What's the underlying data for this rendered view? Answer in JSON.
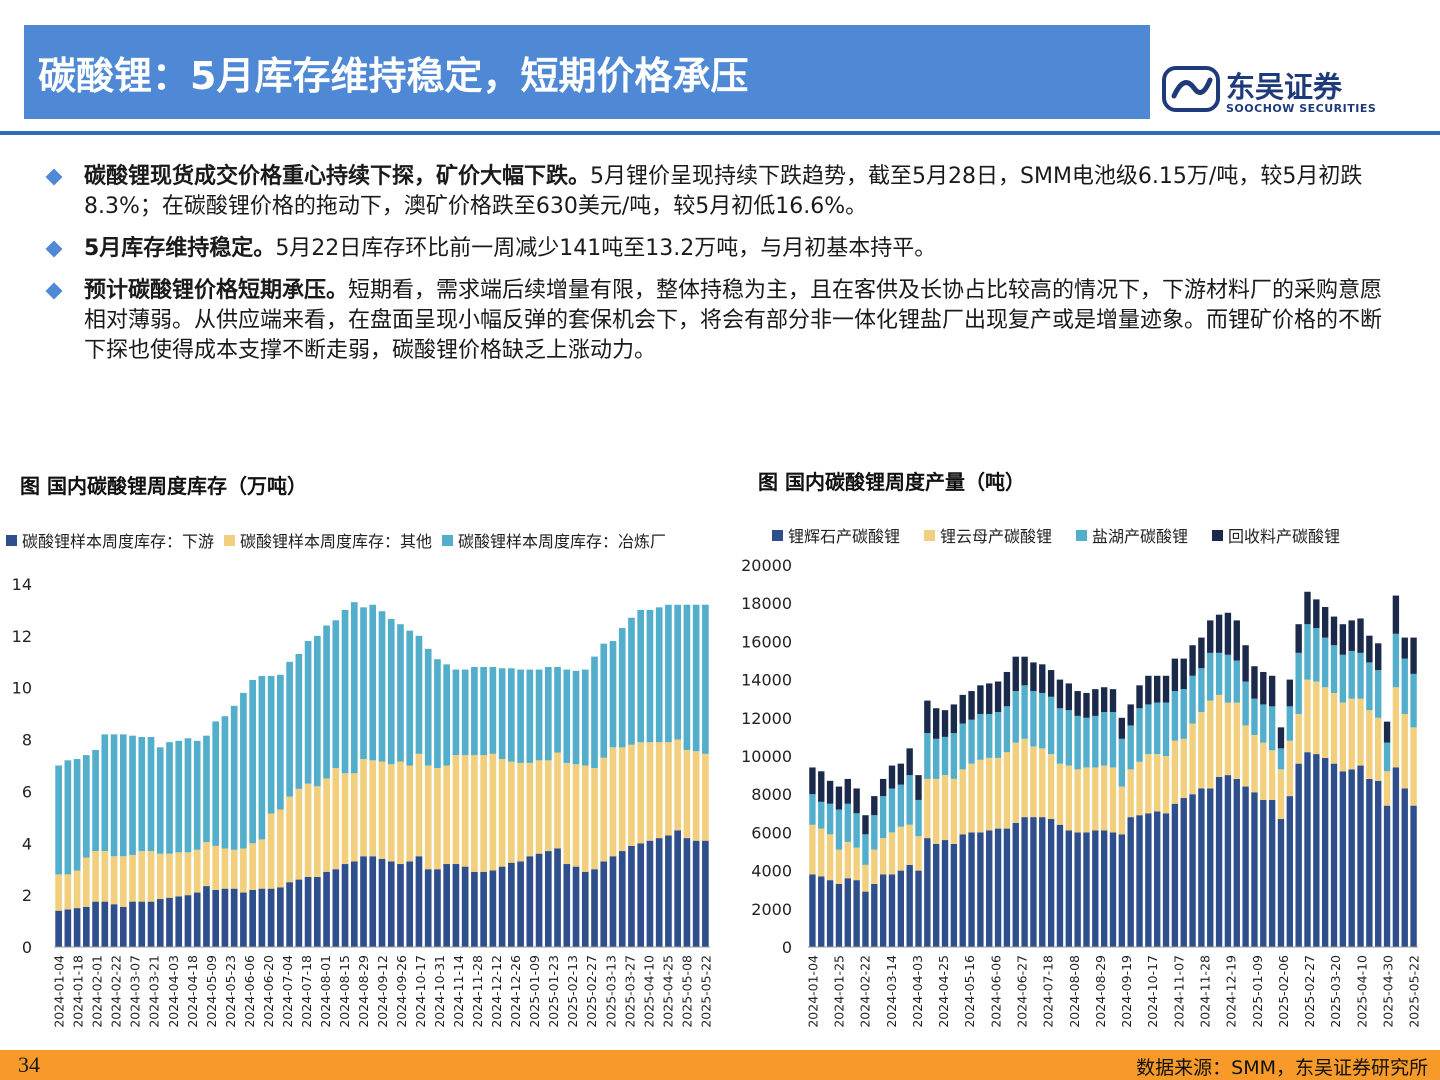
{
  "header": {
    "title": "碳酸锂：5月库存维持稳定，短期价格承压",
    "logo_cn": "东吴证券",
    "logo_en": "SOOCHOW SECURITIES"
  },
  "bullets": [
    {
      "bold": "碳酸锂现货成交价格重心持续下探，矿价大幅下跌。",
      "text": "5月锂价呈现持续下跌趋势，截至5月28日，SMM电池级6.15万/吨，较5月初跌8.3%；在碳酸锂价格的拖动下，澳矿价格跌至630美元/吨，较5月初低16.6%。"
    },
    {
      "bold": "5月库存维持稳定。",
      "text": "5月22日库存环比前一周减少141吨至13.2万吨，与月初基本持平。"
    },
    {
      "bold": "预计碳酸锂价格短期承压。",
      "text": "短期看，需求端后续增量有限，整体持稳为主，且在客供及长协占比较高的情况下，下游材料厂的采购意愿相对薄弱。从供应端来看，在盘面呈现小幅反弹的套保机会下，将会有部分非一体化锂盐厂出现复产或是增量迹象。而锂矿价格的不断下探也使得成本支撑不断走弱，碳酸锂价格缺乏上涨动力。"
    }
  ],
  "footer": {
    "page": "34",
    "source": "数据来源：SMM，东吴证券研究所"
  },
  "colors": {
    "accent": "#4f88d4",
    "dark_blue": "#2e4f8c",
    "yellow": "#f2cf7d",
    "teal": "#52aecb",
    "navy": "#1b2a4a",
    "footer": "#f79a2a"
  },
  "chart_data": [
    {
      "type": "bar",
      "stacked": true,
      "title": "图 国内碳酸锂周度库存（万吨）",
      "ylim": [
        0,
        14
      ],
      "yticks": [
        "0",
        "2",
        "4",
        "6",
        "8",
        "10",
        "12",
        "14"
      ],
      "x_tick_labels": [
        "2024-01-04",
        "2024-01-18",
        "2024-02-01",
        "2024-02-22",
        "2024-03-07",
        "2024-03-21",
        "2024-04-03",
        "2024-04-18",
        "2024-05-09",
        "2024-05-23",
        "2024-06-06",
        "2024-06-20",
        "2024-07-04",
        "2024-07-18",
        "2024-08-01",
        "2024-08-15",
        "2024-08-29",
        "2024-09-12",
        "2024-09-26",
        "2024-10-17",
        "2024-10-31",
        "2024-11-14",
        "2024-11-28",
        "2024-12-12",
        "2024-12-26",
        "2025-01-09",
        "2025-01-23",
        "2025-02-13",
        "2025-02-27",
        "2025-03-13",
        "2025-03-27",
        "2025-04-10",
        "2025-04-25",
        "2025-05-08",
        "2025-05-22"
      ],
      "series": [
        {
          "name": "碳酸锂样本周度库存：下游",
          "color": "#2e4f8c",
          "values": [
            1.4,
            1.45,
            1.5,
            1.55,
            1.75,
            1.75,
            1.65,
            1.55,
            1.75,
            1.75,
            1.75,
            1.85,
            1.9,
            1.95,
            2.0,
            2.1,
            2.35,
            2.2,
            2.25,
            2.25,
            2.1,
            2.2,
            2.25,
            2.25,
            2.3,
            2.5,
            2.6,
            2.7,
            2.7,
            2.9,
            3.0,
            3.2,
            3.3,
            3.5,
            3.5,
            3.4,
            3.3,
            3.2,
            3.3,
            3.5,
            3.0,
            3.0,
            3.2,
            3.2,
            3.1,
            2.9,
            2.9,
            2.95,
            3.1,
            3.25,
            3.3,
            3.5,
            3.6,
            3.7,
            3.8,
            3.2,
            3.1,
            2.9,
            3.0,
            3.3,
            3.5,
            3.7,
            3.9,
            4.0,
            4.1,
            4.2,
            4.3,
            4.5,
            4.2,
            4.1,
            4.1
          ]
        },
        {
          "name": "碳酸锂样本周度库存：其他",
          "color": "#f2cf7d",
          "values": [
            1.4,
            1.35,
            1.45,
            1.9,
            1.95,
            1.95,
            1.85,
            1.95,
            1.8,
            1.95,
            1.95,
            1.75,
            1.7,
            1.7,
            1.65,
            1.65,
            1.7,
            1.7,
            1.55,
            1.5,
            1.7,
            1.8,
            1.9,
            2.9,
            3.0,
            3.3,
            3.5,
            3.6,
            3.5,
            3.6,
            3.9,
            3.5,
            3.4,
            3.75,
            3.7,
            3.75,
            3.75,
            3.95,
            3.7,
            3.95,
            4.0,
            3.9,
            3.8,
            4.2,
            4.3,
            4.5,
            4.5,
            4.5,
            4.15,
            3.9,
            3.8,
            3.6,
            3.6,
            3.5,
            3.7,
            3.9,
            3.95,
            4.1,
            3.9,
            4.0,
            4.2,
            4.0,
            3.9,
            3.9,
            3.8,
            3.7,
            3.6,
            3.5,
            3.4,
            3.45,
            3.35
          ]
        },
        {
          "name": "碳酸锂样本周度库存：冶炼厂",
          "color": "#52aecb",
          "values": [
            4.2,
            4.4,
            4.3,
            3.95,
            3.9,
            4.5,
            4.7,
            4.7,
            4.6,
            4.4,
            4.4,
            4.1,
            4.3,
            4.3,
            4.4,
            4.2,
            4.1,
            4.8,
            5.1,
            5.55,
            6.0,
            6.3,
            6.3,
            5.3,
            5.2,
            5.2,
            5.2,
            5.5,
            5.8,
            5.9,
            5.7,
            6.3,
            6.6,
            5.85,
            6.0,
            5.8,
            5.6,
            5.3,
            5.2,
            4.55,
            4.5,
            4.2,
            3.9,
            3.3,
            3.3,
            3.4,
            3.4,
            3.35,
            3.5,
            3.6,
            3.6,
            3.6,
            3.5,
            3.6,
            3.3,
            3.6,
            3.6,
            3.7,
            4.3,
            4.4,
            4.1,
            4.6,
            4.9,
            5.1,
            5.1,
            5.2,
            5.3,
            5.2,
            5.6,
            5.65,
            5.75
          ]
        }
      ],
      "x_count": 71
    },
    {
      "type": "bar",
      "stacked": true,
      "title": "图 国内碳酸锂周度产量（吨）",
      "ylim": [
        0,
        20000
      ],
      "yticks": [
        "0",
        "2000",
        "4000",
        "6000",
        "8000",
        "10000",
        "12000",
        "14000",
        "16000",
        "18000",
        "20000"
      ],
      "x_tick_labels": [
        "2024-01-04",
        "2024-01-25",
        "2024-02-22",
        "2024-03-14",
        "2024-04-03",
        "2024-04-25",
        "2024-05-16",
        "2024-06-06",
        "2024-06-27",
        "2024-07-18",
        "2024-08-08",
        "2024-08-29",
        "2024-09-19",
        "2024-10-17",
        "2024-11-07",
        "2024-11-28",
        "2024-12-19",
        "2025-01-09",
        "2025-02-06",
        "2025-02-27",
        "2025-03-20",
        "2025-04-10",
        "2025-04-30",
        "2025-05-22"
      ],
      "series": [
        {
          "name": "锂辉石产碳酸锂",
          "color": "#2e4f8c",
          "values": [
            3800,
            3700,
            3500,
            3300,
            3600,
            3500,
            2900,
            3300,
            3800,
            3800,
            4000,
            4300,
            4000,
            5700,
            5400,
            5600,
            5400,
            5900,
            6000,
            6000,
            6100,
            6200,
            6200,
            6500,
            6800,
            6800,
            6800,
            6700,
            6400,
            6100,
            6000,
            6000,
            6100,
            6100,
            6000,
            5900,
            6800,
            6900,
            7000,
            7100,
            7000,
            7500,
            7800,
            8000,
            8300,
            8300,
            8900,
            9000,
            8800,
            8400,
            8100,
            7700,
            7700,
            6700,
            7900,
            9600,
            10200,
            10100,
            9900,
            9600,
            9200,
            9300,
            9500,
            8800,
            8700,
            7400,
            9400,
            8300,
            7400
          ]
        },
        {
          "name": "锂云母产碳酸锂",
          "color": "#f2cf7d",
          "values": [
            2600,
            2500,
            2400,
            1800,
            1900,
            1700,
            1400,
            1800,
            1900,
            2200,
            2300,
            2100,
            1800,
            3100,
            3400,
            3400,
            3400,
            3400,
            3600,
            3800,
            3800,
            3700,
            4000,
            4200,
            4100,
            3700,
            3600,
            3400,
            3200,
            3400,
            3300,
            3400,
            3300,
            3400,
            3400,
            2500,
            2500,
            2800,
            3100,
            3000,
            3000,
            3300,
            3100,
            3700,
            4000,
            4600,
            4300,
            3800,
            4000,
            3200,
            3000,
            3000,
            2600,
            2600,
            2900,
            2600,
            3800,
            3800,
            3700,
            3700,
            3600,
            3700,
            3500,
            3600,
            3300,
            1800,
            4200,
            3900,
            4100
          ]
        },
        {
          "name": "盐湖产碳酸锂",
          "color": "#52aecb",
          "values": [
            1600,
            1400,
            1600,
            2100,
            2000,
            1800,
            1600,
            1800,
            2200,
            2300,
            2200,
            2600,
            1900,
            2400,
            2100,
            2000,
            2400,
            2400,
            2300,
            2400,
            2300,
            2400,
            2400,
            2700,
            2800,
            2900,
            2900,
            3000,
            2900,
            2900,
            2800,
            2600,
            2700,
            2800,
            2900,
            2500,
            2300,
            2800,
            2600,
            2700,
            2800,
            2600,
            2600,
            2500,
            2300,
            2500,
            2200,
            2500,
            2200,
            2300,
            1900,
            2000,
            2300,
            1100,
            1800,
            3200,
            2900,
            2800,
            2600,
            2500,
            2500,
            2500,
            2400,
            2500,
            2500,
            1500,
            2800,
            2900,
            2800
          ]
        },
        {
          "name": "回收料产碳酸锂",
          "color": "#1b2a4a",
          "values": [
            1400,
            1600,
            1200,
            1200,
            1300,
            1300,
            1000,
            1000,
            900,
            1200,
            1100,
            1400,
            1300,
            1700,
            1600,
            1400,
            1500,
            1500,
            1500,
            1500,
            1600,
            1600,
            1800,
            1800,
            1500,
            1500,
            1500,
            1400,
            1500,
            1400,
            1300,
            1300,
            1400,
            1300,
            1200,
            1100,
            1100,
            1200,
            1500,
            1400,
            1400,
            1700,
            1600,
            1600,
            1600,
            1700,
            2000,
            2200,
            2100,
            1900,
            1700,
            1700,
            1600,
            1100,
            1400,
            1500,
            1700,
            1500,
            1600,
            1500,
            1600,
            1600,
            1800,
            1400,
            1400,
            1100,
            2000,
            1100,
            1900
          ]
        }
      ],
      "x_count": 69
    }
  ]
}
